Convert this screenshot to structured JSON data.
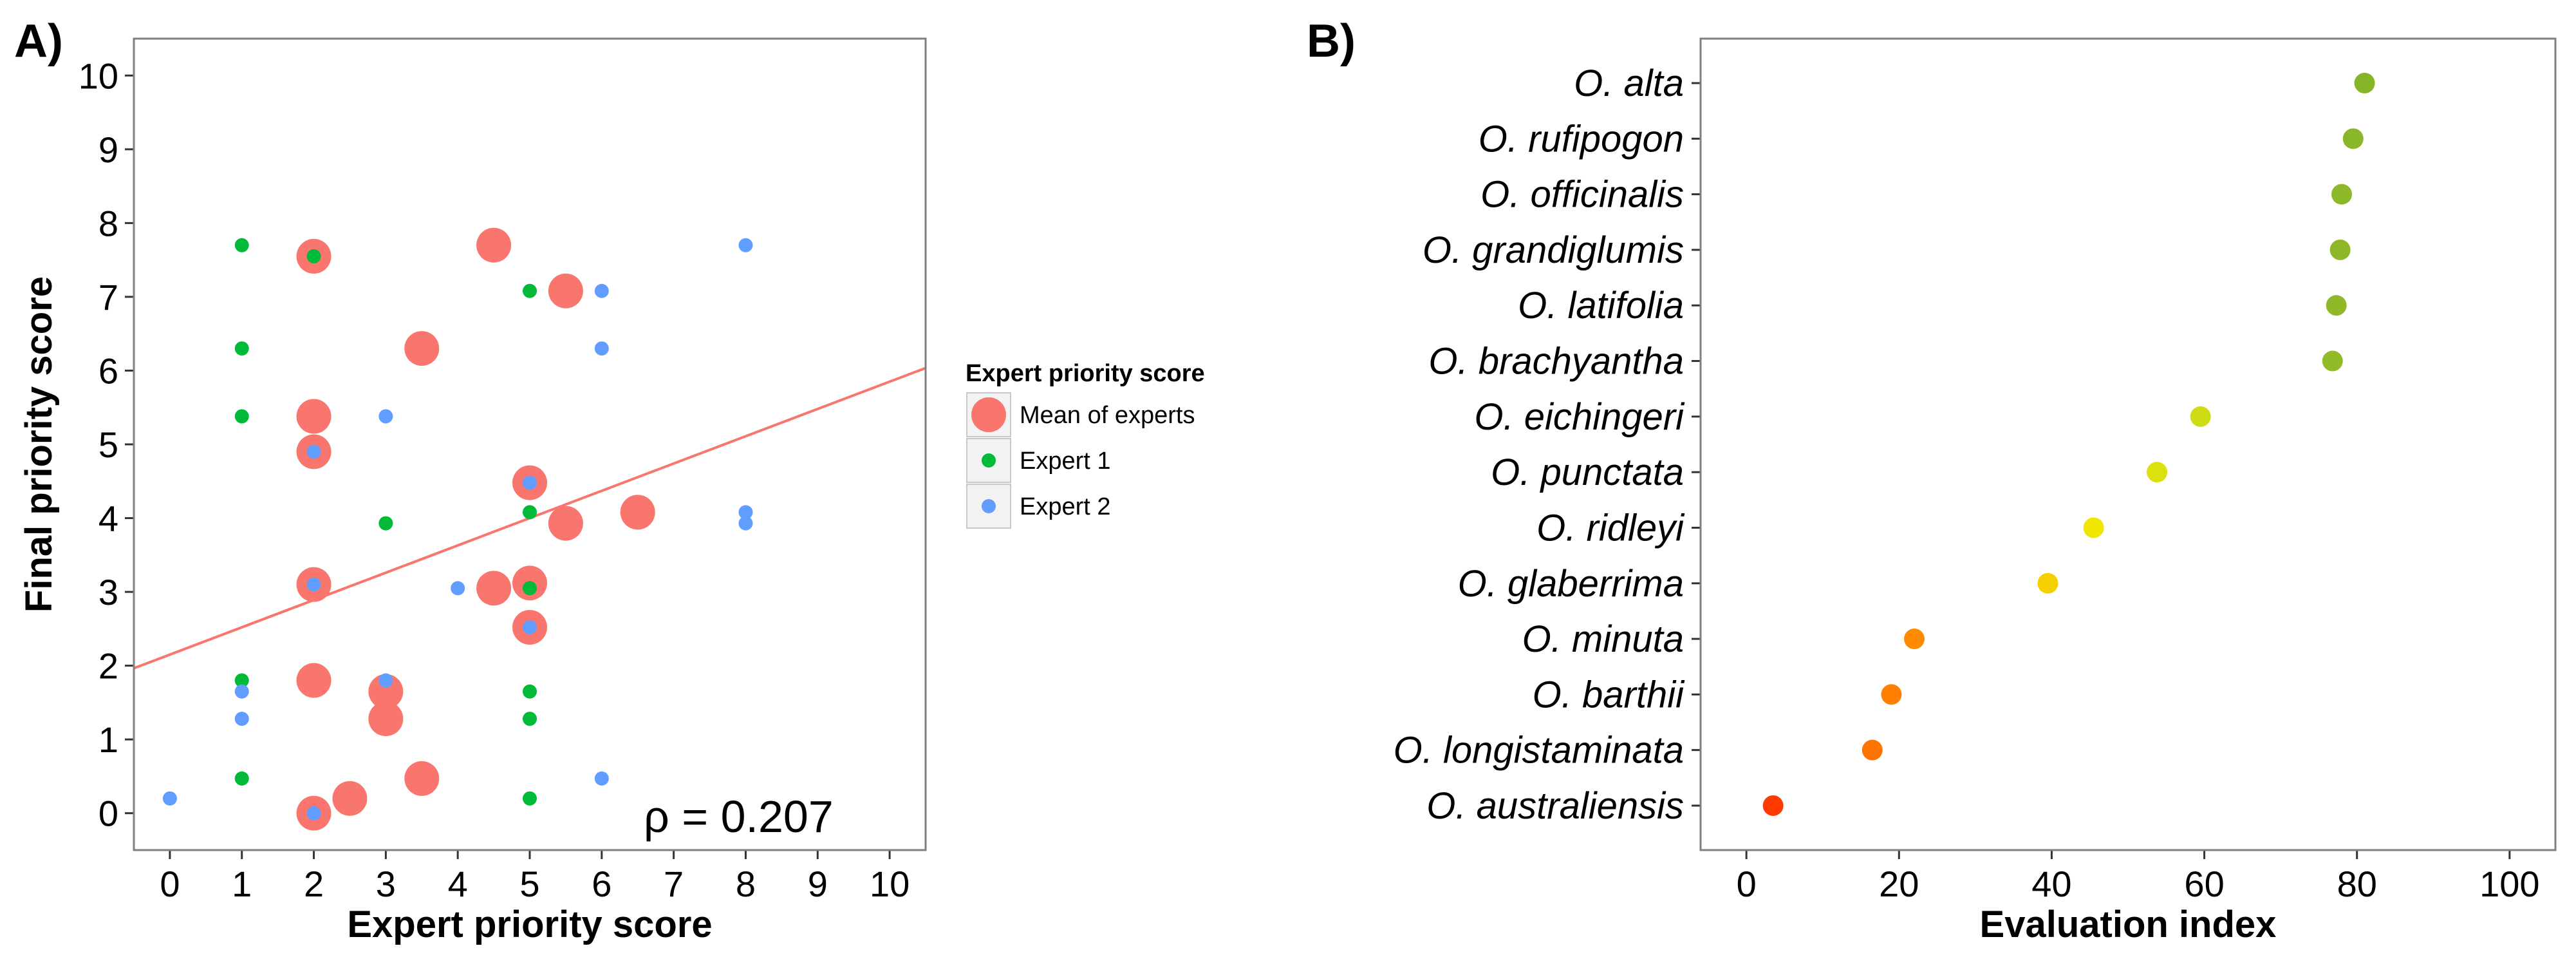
{
  "colors": {
    "mean": "#F8766D",
    "expert1": "#00BA38",
    "expert2": "#619CFF",
    "regression": "#F8766D",
    "panel_border": "#7f7f7f",
    "ramp": [
      "#FF2A00",
      "#FF8C00",
      "#F2E600",
      "#A8C82A",
      "#7FB12A"
    ]
  },
  "panelA": {
    "label": "A)",
    "annotation": "ρ = 0.207",
    "legend": {
      "title": "Expert priority score",
      "items": [
        {
          "label": "Mean of experts",
          "key": "mean"
        },
        {
          "label": "Expert 1",
          "key": "expert1"
        },
        {
          "label": "Expert 2",
          "key": "expert2"
        }
      ]
    }
  },
  "panelB": {
    "label": "B)"
  },
  "chart_data": [
    {
      "type": "scatter",
      "xlabel": "Expert priority score",
      "ylabel": "Final priority score",
      "xlim": [
        -0.5,
        10.5
      ],
      "ylim": [
        -0.5,
        10.5
      ],
      "xticks": [
        0,
        1,
        2,
        3,
        4,
        5,
        6,
        7,
        8,
        9,
        10
      ],
      "yticks": [
        0,
        1,
        2,
        3,
        4,
        5,
        6,
        7,
        8,
        9,
        10
      ],
      "grid": false,
      "legend_position": "right",
      "regression_line": {
        "intercept": 2.15,
        "slope": 0.37
      },
      "series": [
        {
          "name": "Mean of experts",
          "key": "mean",
          "points": [
            [
              2,
              7.55
            ],
            [
              4.5,
              7.7
            ],
            [
              5.5,
              7.08
            ],
            [
              3.5,
              6.3
            ],
            [
              2,
              5.38
            ],
            [
              2,
              4.9
            ],
            [
              5,
              4.48
            ],
            [
              5.5,
              3.93
            ],
            [
              6.5,
              4.08
            ],
            [
              2,
              3.1
            ],
            [
              4.5,
              3.05
            ],
            [
              5,
              3.12
            ],
            [
              5,
              2.52
            ],
            [
              2,
              1.8
            ],
            [
              3,
              1.65
            ],
            [
              3,
              1.28
            ],
            [
              3.5,
              0.47
            ],
            [
              2.5,
              0.2
            ],
            [
              2,
              0.0
            ]
          ]
        },
        {
          "name": "Expert 1",
          "key": "expert1",
          "points": [
            [
              1,
              7.7
            ],
            [
              2,
              7.55
            ],
            [
              5,
              7.08
            ],
            [
              1,
              6.3
            ],
            [
              1,
              5.38
            ],
            [
              5,
              4.08
            ],
            [
              3,
              3.93
            ],
            [
              5,
              3.05
            ],
            [
              1,
              1.8
            ],
            [
              5,
              1.65
            ],
            [
              5,
              1.28
            ],
            [
              1,
              0.47
            ],
            [
              5,
              0.2
            ]
          ]
        },
        {
          "name": "Expert 2",
          "key": "expert2",
          "points": [
            [
              8,
              7.7
            ],
            [
              6,
              7.08
            ],
            [
              6,
              6.3
            ],
            [
              3,
              5.38
            ],
            [
              2,
              4.9
            ],
            [
              5,
              4.48
            ],
            [
              8,
              4.08
            ],
            [
              8,
              3.93
            ],
            [
              2,
              3.1
            ],
            [
              4,
              3.05
            ],
            [
              5,
              2.52
            ],
            [
              3,
              1.8
            ],
            [
              1,
              1.65
            ],
            [
              1,
              1.28
            ],
            [
              6,
              0.47
            ],
            [
              0,
              0.2
            ],
            [
              2,
              0.0
            ]
          ]
        }
      ]
    },
    {
      "type": "scatter",
      "xlabel": "Evaluation index",
      "ylabel": "",
      "xlim": [
        -6,
        106
      ],
      "xticks": [
        0,
        20,
        40,
        60,
        80,
        100
      ],
      "grid": false,
      "categories": [
        "O. alta",
        "O. rufipogon",
        "O. officinalis",
        "O. grandiglumis",
        "O. latifolia",
        "O. brachyantha",
        "O. eichingeri",
        "O. punctata",
        "O. ridleyi",
        "O. glaberrima",
        "O. minuta",
        "O. barthii",
        "O. longistaminata",
        "O. australiensis"
      ],
      "values": [
        81,
        79.5,
        78,
        77.8,
        77.3,
        76.8,
        59.5,
        53.8,
        45.5,
        39.5,
        22,
        19,
        16.5,
        3.5
      ]
    }
  ]
}
